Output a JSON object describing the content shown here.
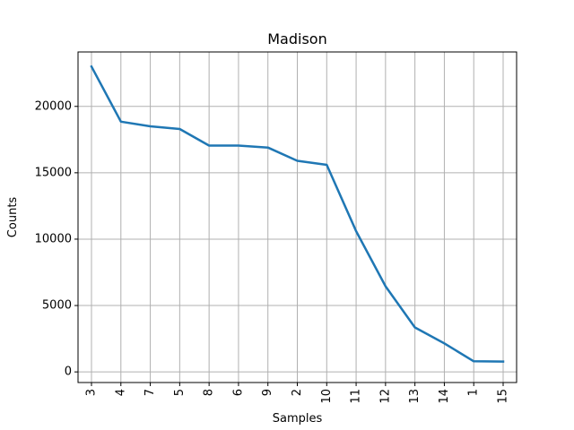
{
  "chart_data": {
    "type": "line",
    "title": "Madison",
    "xlabel": "Samples",
    "ylabel": "Counts",
    "categories": [
      "3",
      "4",
      "7",
      "5",
      "8",
      "6",
      "9",
      "2",
      "10",
      "11",
      "12",
      "13",
      "14",
      "1",
      "15"
    ],
    "series": [
      {
        "values": [
          23000,
          18850,
          18500,
          18300,
          17050,
          17050,
          16900,
          15900,
          15600,
          10600,
          6450,
          3350,
          2150,
          800,
          780
        ],
        "color": "#1f77b4"
      }
    ],
    "ylim": [
      -800,
      24100
    ],
    "yticks": [
      0,
      5000,
      10000,
      15000,
      20000
    ],
    "grid": true,
    "x_tick_rotation": "vertical"
  }
}
